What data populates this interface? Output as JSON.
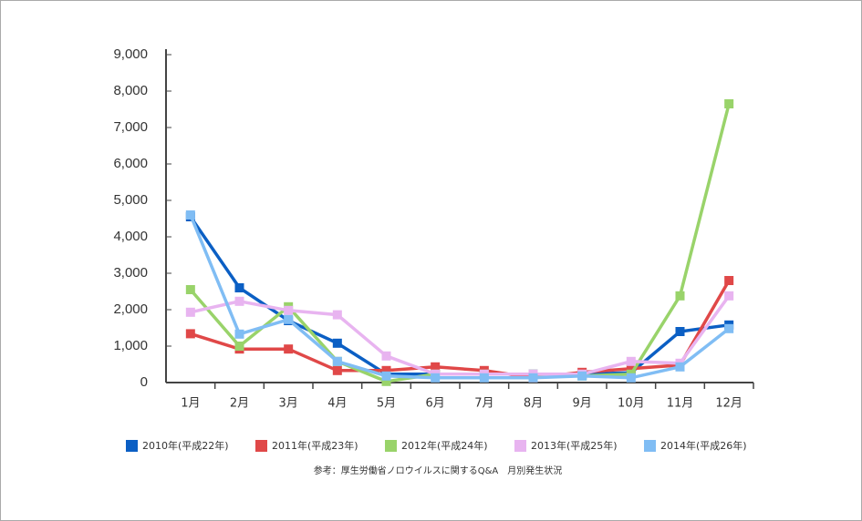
{
  "chart_data": {
    "type": "line",
    "categories": [
      "1月",
      "2月",
      "3月",
      "4月",
      "5月",
      "6月",
      "7月",
      "8月",
      "9月",
      "10月",
      "11月",
      "12月"
    ],
    "series": [
      {
        "name": "2010年(平成22年)",
        "color": "#0b5fc4",
        "values": [
          4550,
          2600,
          1700,
          1080,
          230,
          230,
          230,
          230,
          230,
          270,
          1400,
          1580
        ]
      },
      {
        "name": "2011年(平成23年)",
        "color": "#e04848",
        "values": [
          1340,
          920,
          920,
          330,
          330,
          430,
          330,
          130,
          280,
          380,
          480,
          2800
        ]
      },
      {
        "name": "2012年(平成24年)",
        "color": "#99d36a",
        "values": [
          2550,
          1000,
          2080,
          580,
          30,
          230,
          230,
          230,
          180,
          230,
          2380,
          7650
        ]
      },
      {
        "name": "2013年(平成25年)",
        "color": "#e8b4f0",
        "values": [
          1930,
          2230,
          1980,
          1860,
          730,
          230,
          230,
          230,
          230,
          580,
          530,
          2380
        ]
      },
      {
        "name": "2014年(平成26年)",
        "color": "#80bdf4",
        "values": [
          4600,
          1330,
          1730,
          580,
          180,
          130,
          130,
          130,
          180,
          130,
          430,
          1480
        ]
      }
    ],
    "ylim": [
      0,
      9000
    ],
    "yticks": [
      0,
      {
        "value": 1000,
        "label": "1,000"
      },
      {
        "value": 2000,
        "label": "2,000"
      },
      {
        "value": 3000,
        "label": "3,000"
      },
      {
        "value": 4000,
        "label": "4,000"
      },
      {
        "value": 5000,
        "label": "5,000"
      },
      {
        "value": 6000,
        "label": "6,000"
      },
      {
        "value": 7000,
        "label": "7,000"
      },
      {
        "value": 8000,
        "label": "8,000"
      },
      {
        "value": 9000,
        "label": "9,000"
      }
    ],
    "source": "参考：厚生労働省ノロウイルスに関するQ&A　月別発生状況"
  }
}
